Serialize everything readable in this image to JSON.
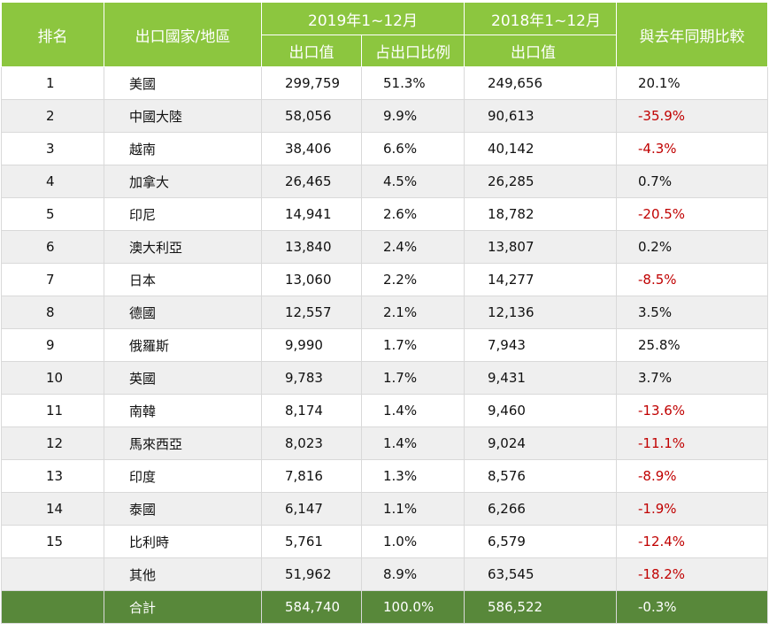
{
  "header": {
    "rank": "排名",
    "country": "出口國家/地區",
    "period_2019": "2019年1~12月",
    "period_2018": "2018年1~12月",
    "yoy": "與去年同期比較",
    "export_value": "出口值",
    "export_share": "占出口比例",
    "export_value_2018": "出口值"
  },
  "rows": [
    {
      "rank": "1",
      "country": "美國",
      "v2019": "299,759",
      "share": "51.3%",
      "v2018": "249,656",
      "yoy": "20.1%"
    },
    {
      "rank": "2",
      "country": "中國大陸",
      "v2019": "58,056",
      "share": "9.9%",
      "v2018": "90,613",
      "yoy": "-35.9%"
    },
    {
      "rank": "3",
      "country": "越南",
      "v2019": "38,406",
      "share": "6.6%",
      "v2018": "40,142",
      "yoy": "-4.3%"
    },
    {
      "rank": "4",
      "country": "加拿大",
      "v2019": "26,465",
      "share": "4.5%",
      "v2018": "26,285",
      "yoy": "0.7%"
    },
    {
      "rank": "5",
      "country": "印尼",
      "v2019": "14,941",
      "share": "2.6%",
      "v2018": "18,782",
      "yoy": "-20.5%"
    },
    {
      "rank": "6",
      "country": "澳大利亞",
      "v2019": "13,840",
      "share": "2.4%",
      "v2018": "13,807",
      "yoy": "0.2%"
    },
    {
      "rank": "7",
      "country": "日本",
      "v2019": "13,060",
      "share": "2.2%",
      "v2018": "14,277",
      "yoy": "-8.5%"
    },
    {
      "rank": "8",
      "country": "德國",
      "v2019": "12,557",
      "share": "2.1%",
      "v2018": "12,136",
      "yoy": "3.5%"
    },
    {
      "rank": "9",
      "country": "俄羅斯",
      "v2019": "9,990",
      "share": "1.7%",
      "v2018": "7,943",
      "yoy": "25.8%"
    },
    {
      "rank": "10",
      "country": "英國",
      "v2019": "9,783",
      "share": "1.7%",
      "v2018": "9,431",
      "yoy": "3.7%"
    },
    {
      "rank": "11",
      "country": "南韓",
      "v2019": "8,174",
      "share": "1.4%",
      "v2018": "9,460",
      "yoy": "-13.6%"
    },
    {
      "rank": "12",
      "country": "馬來西亞",
      "v2019": "8,023",
      "share": "1.4%",
      "v2018": "9,024",
      "yoy": "-11.1%"
    },
    {
      "rank": "13",
      "country": "印度",
      "v2019": "7,816",
      "share": "1.3%",
      "v2018": "8,576",
      "yoy": "-8.9%"
    },
    {
      "rank": "14",
      "country": "泰國",
      "v2019": "6,147",
      "share": "1.1%",
      "v2018": "6,266",
      "yoy": "-1.9%"
    },
    {
      "rank": "15",
      "country": "比利時",
      "v2019": "5,761",
      "share": "1.0%",
      "v2018": "6,579",
      "yoy": "-12.4%"
    },
    {
      "rank": "",
      "country": "其他",
      "v2019": "51,962",
      "share": "8.9%",
      "v2018": "63,545",
      "yoy": "-18.2%"
    }
  ],
  "total": {
    "rank": "",
    "country": "合計",
    "v2019": "584,740",
    "share": "100.0%",
    "v2018": "586,522",
    "yoy": "-0.3%"
  },
  "colors": {
    "header_green": "#8cc63f",
    "total_green": "#58883a",
    "negative_red": "#c00000",
    "stripe": "#efefef"
  }
}
